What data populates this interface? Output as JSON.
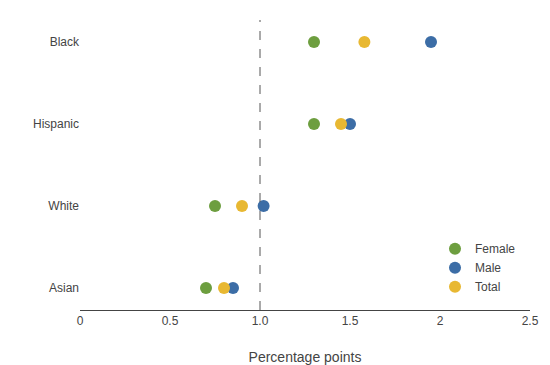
{
  "chart_data": {
    "type": "scatter",
    "categories": [
      "Black",
      "Hispanic",
      "White",
      "Asian"
    ],
    "series": [
      {
        "name": "Female",
        "color": "#6d9e3f",
        "values": [
          1.3,
          1.3,
          0.75,
          0.7
        ]
      },
      {
        "name": "Male",
        "color": "#3c6da6",
        "values": [
          1.95,
          1.5,
          1.02,
          0.85
        ]
      },
      {
        "name": "Total",
        "color": "#e8b832",
        "values": [
          1.58,
          1.45,
          0.9,
          0.8
        ]
      }
    ],
    "xlabel": "Percentage points",
    "xlim": [
      0,
      2.5
    ],
    "xticks": [
      0,
      0.5,
      {
        "value": 1.0,
        "label": "1.0"
      },
      1.5,
      2,
      2.5
    ],
    "vline": 1.0,
    "grid": false,
    "legend": "lower right",
    "marker": "circle"
  }
}
